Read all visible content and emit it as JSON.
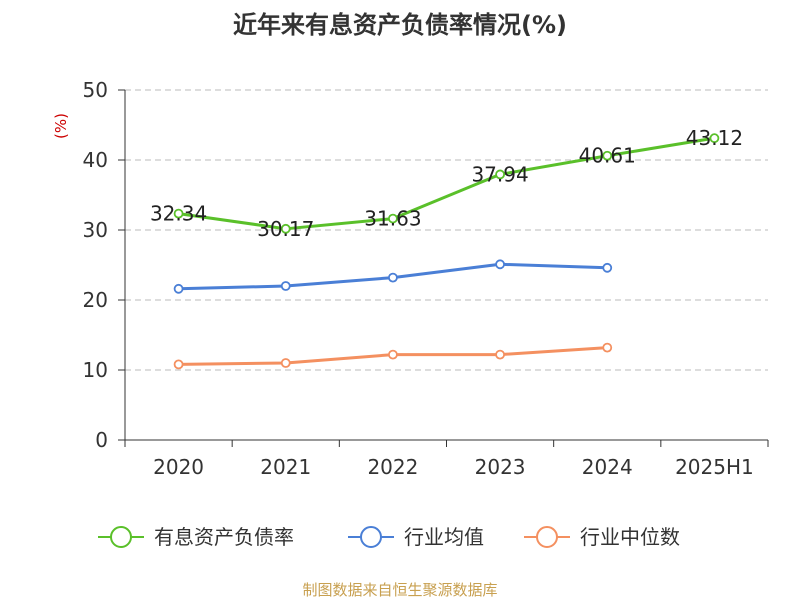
{
  "chart_data": {
    "type": "line",
    "title": "近年来有息资产负债率情况(%)",
    "unit_label": "(%)",
    "categories": [
      "2020",
      "2021",
      "2022",
      "2023",
      "2024",
      "2025H1"
    ],
    "ylim": [
      0,
      50
    ],
    "yticks": [
      0,
      10,
      20,
      30,
      40,
      50
    ],
    "grid": true,
    "legend_position": "bottom",
    "series": [
      {
        "name": "有息资产负债率",
        "color": "#5ac02a",
        "values": [
          32.34,
          30.17,
          31.63,
          37.94,
          40.61,
          43.12
        ],
        "show_labels": true
      },
      {
        "name": "行业均值",
        "color": "#4a7fd6",
        "values": [
          21.6,
          22.0,
          23.2,
          25.1,
          24.6,
          null
        ],
        "show_labels": false
      },
      {
        "name": "行业中位数",
        "color": "#f49060",
        "values": [
          10.8,
          11.0,
          12.2,
          12.2,
          13.2,
          null
        ],
        "show_labels": false
      }
    ]
  },
  "source_text": "制图数据来自恒生聚源数据库"
}
